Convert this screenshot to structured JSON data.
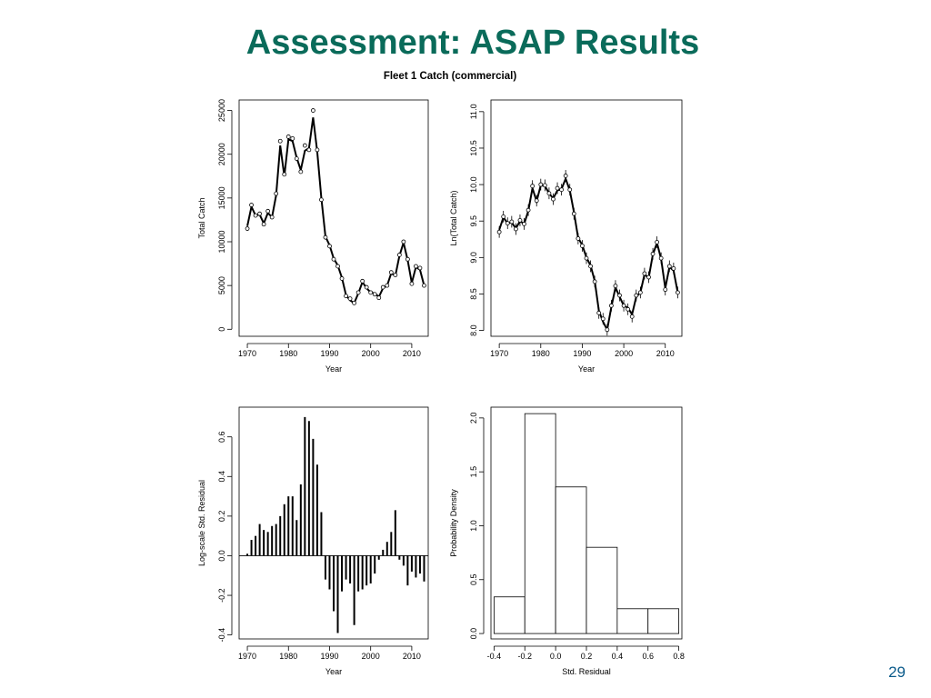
{
  "slide": {
    "title": "Assessment: ASAP Results",
    "page_number": "29"
  },
  "figure": {
    "title": "Fleet 1 Catch  (commercial)"
  },
  "chart_data": [
    {
      "type": "line",
      "xlabel": "Year",
      "ylabel": "Total Catch",
      "xlim": [
        1968,
        2014
      ],
      "ylim": [
        -800,
        26200
      ],
      "xticks": [
        1970,
        1980,
        1990,
        2000,
        2010
      ],
      "yticks": [
        0,
        5000,
        10000,
        15000,
        20000,
        25000
      ],
      "grid": false,
      "x": [
        1970,
        1971,
        1972,
        1973,
        1974,
        1975,
        1976,
        1977,
        1978,
        1979,
        1980,
        1981,
        1982,
        1983,
        1984,
        1985,
        1986,
        1987,
        1988,
        1989,
        1990,
        1991,
        1992,
        1993,
        1994,
        1995,
        1996,
        1997,
        1998,
        1999,
        2000,
        2001,
        2002,
        2003,
        2004,
        2005,
        2006,
        2007,
        2008,
        2009,
        2010,
        2011,
        2012,
        2013
      ],
      "series": [
        {
          "role": "observed",
          "marker": "circle",
          "values": [
            11500,
            14200,
            13000,
            13200,
            12000,
            13500,
            12800,
            15500,
            21500,
            17700,
            22000,
            21800,
            19500,
            18000,
            21000,
            20500,
            25000,
            20500,
            14800,
            10500,
            9500,
            8000,
            7200,
            5800,
            3800,
            3500,
            3000,
            4200,
            5500,
            4800,
            4200,
            4000,
            3600,
            4800,
            5000,
            6500,
            6200,
            8500,
            10000,
            8000,
            5200,
            7200,
            7000,
            5000
          ]
        },
        {
          "role": "predicted",
          "marker": "none",
          "values": [
            11800,
            14000,
            13000,
            13100,
            12100,
            13300,
            12800,
            15300,
            21000,
            17500,
            21700,
            21500,
            19600,
            18200,
            20400,
            20700,
            24200,
            20300,
            15000,
            10600,
            9600,
            8100,
            7300,
            5900,
            3900,
            3300,
            3000,
            4100,
            5400,
            4700,
            4200,
            4100,
            3700,
            4700,
            5000,
            6400,
            6100,
            8400,
            9900,
            7900,
            5300,
            7100,
            6800,
            5000
          ]
        }
      ]
    },
    {
      "type": "line",
      "xlabel": "Year",
      "ylabel": "Ln(Total Catch)",
      "xlim": [
        1968,
        2014
      ],
      "ylim": [
        7.92,
        11.16
      ],
      "xticks": [
        1970,
        1980,
        1990,
        2000,
        2010
      ],
      "yticks": [
        8.0,
        8.5,
        9.0,
        9.5,
        10.0,
        10.5,
        11.0
      ],
      "grid": false,
      "error_bar_halfwidth": 0.08,
      "x": [
        1970,
        1971,
        1972,
        1973,
        1974,
        1975,
        1976,
        1977,
        1978,
        1979,
        1980,
        1981,
        1982,
        1983,
        1984,
        1985,
        1986,
        1987,
        1988,
        1989,
        1990,
        1991,
        1992,
        1993,
        1994,
        1995,
        1996,
        1997,
        1998,
        1999,
        2000,
        2001,
        2002,
        2003,
        2004,
        2005,
        2006,
        2007,
        2008,
        2009,
        2010,
        2011,
        2012,
        2013
      ],
      "series": [
        {
          "role": "observed",
          "marker": "circle",
          "values": [
            9.35,
            9.56,
            9.47,
            9.49,
            9.39,
            9.51,
            9.46,
            9.65,
            9.98,
            9.78,
            10.0,
            9.99,
            9.88,
            9.8,
            9.95,
            9.93,
            10.12,
            9.93,
            9.6,
            9.26,
            9.16,
            8.99,
            8.88,
            8.67,
            8.24,
            8.16,
            8.01,
            8.34,
            8.61,
            8.48,
            8.34,
            8.29,
            8.19,
            8.48,
            8.52,
            8.78,
            8.73,
            9.05,
            9.21,
            8.99,
            8.56,
            8.88,
            8.85,
            8.52
          ]
        },
        {
          "role": "predicted",
          "marker": "none",
          "values": [
            9.38,
            9.55,
            9.47,
            9.48,
            9.4,
            9.5,
            9.46,
            9.64,
            9.95,
            9.77,
            9.99,
            9.98,
            9.88,
            9.81,
            9.92,
            9.94,
            10.08,
            9.92,
            9.62,
            9.27,
            9.17,
            9.0,
            8.89,
            8.68,
            8.27,
            8.12,
            8.01,
            8.32,
            8.59,
            8.46,
            8.34,
            8.31,
            8.22,
            8.46,
            8.52,
            8.77,
            8.72,
            9.04,
            9.2,
            8.98,
            8.58,
            8.87,
            8.82,
            8.52
          ]
        }
      ]
    },
    {
      "type": "bar",
      "xlabel": "Year",
      "ylabel": "Log-scale Std. Residual",
      "xlim": [
        1968,
        2014
      ],
      "ylim": [
        -0.42,
        0.75
      ],
      "xticks": [
        1970,
        1980,
        1990,
        2000,
        2010
      ],
      "yticks": [
        -0.4,
        -0.2,
        0.0,
        0.2,
        0.4,
        0.6
      ],
      "grid": false,
      "x": [
        1970,
        1971,
        1972,
        1973,
        1974,
        1975,
        1976,
        1977,
        1978,
        1979,
        1980,
        1981,
        1982,
        1983,
        1984,
        1985,
        1986,
        1987,
        1988,
        1989,
        1990,
        1991,
        1992,
        1993,
        1994,
        1995,
        1996,
        1997,
        1998,
        1999,
        2000,
        2001,
        2002,
        2003,
        2004,
        2005,
        2006,
        2007,
        2008,
        2009,
        2010,
        2011,
        2012,
        2013
      ],
      "values": [
        0.01,
        0.08,
        0.1,
        0.16,
        0.13,
        0.12,
        0.15,
        0.16,
        0.2,
        0.26,
        0.3,
        0.3,
        0.18,
        0.36,
        0.7,
        0.68,
        0.59,
        0.46,
        0.22,
        -0.12,
        -0.17,
        -0.28,
        -0.39,
        -0.18,
        -0.12,
        -0.14,
        -0.35,
        -0.18,
        -0.17,
        -0.15,
        -0.14,
        -0.09,
        -0.02,
        0.03,
        0.07,
        0.12,
        0.23,
        -0.02,
        -0.05,
        -0.15,
        -0.08,
        -0.11,
        -0.09,
        -0.13
      ]
    },
    {
      "type": "bar",
      "xlabel": "Std. Residual",
      "ylabel": "Probability Density",
      "xlim": [
        -0.42,
        0.82
      ],
      "ylim": [
        -0.05,
        2.1
      ],
      "xticks": [
        -0.4,
        -0.2,
        0.0,
        0.2,
        0.4,
        0.6,
        0.8
      ],
      "xtick_labels": [
        "-0.4",
        "-0.2",
        "0.0",
        "0.2",
        "0.4",
        "0.6",
        "0.8"
      ],
      "yticks": [
        0.0,
        0.5,
        1.0,
        1.5,
        2.0
      ],
      "grid": false,
      "bins": [
        [
          -0.4,
          -0.2
        ],
        [
          -0.2,
          0.0
        ],
        [
          0.0,
          0.2
        ],
        [
          0.2,
          0.4
        ],
        [
          0.4,
          0.6
        ],
        [
          0.6,
          0.8
        ]
      ],
      "values": [
        0.34,
        2.04,
        1.36,
        0.8,
        0.23,
        0.23
      ]
    }
  ]
}
